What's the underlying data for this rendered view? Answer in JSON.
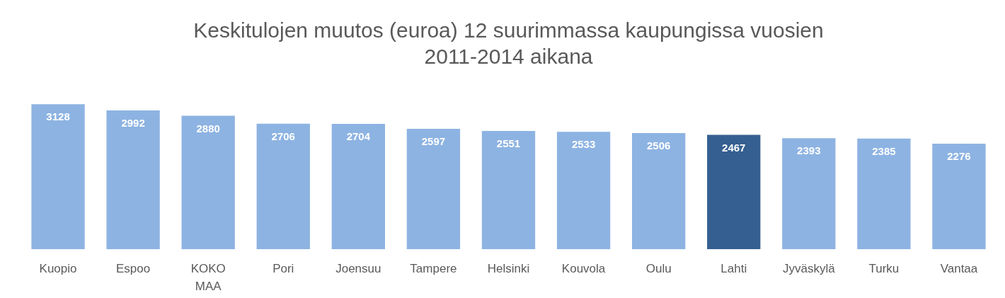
{
  "chart_data": {
    "type": "bar",
    "title": "Keskitulojen muutos (euroa) 12 suurimmassa kaupungissa vuosien 2011-2014 aikana",
    "categories": [
      "Kuopio",
      "Espoo",
      "KOKO MAA",
      "Pori",
      "Joensuu",
      "Tampere",
      "Helsinki",
      "Kouvola",
      "Oulu",
      "Lahti",
      "Jyväskylä",
      "Turku",
      "Vantaa"
    ],
    "values": [
      3128,
      2992,
      2880,
      2706,
      2704,
      2597,
      2551,
      2533,
      2506,
      2467,
      2393,
      2385,
      2276
    ],
    "colors": [
      "#8db3e2",
      "#8db3e2",
      "#8db3e2",
      "#8db3e2",
      "#8db3e2",
      "#8db3e2",
      "#8db3e2",
      "#8db3e2",
      "#8db3e2",
      "#355f91",
      "#8db3e2",
      "#8db3e2",
      "#8db3e2"
    ],
    "data_labels": true
  }
}
